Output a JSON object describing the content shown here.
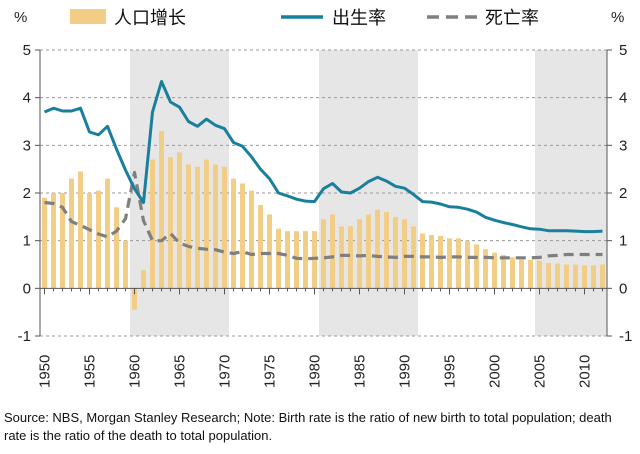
{
  "colors": {
    "population": "#f2cd86",
    "birth": "#1a7f9c",
    "death": "#7f7f7f",
    "shade": "#e6e6e6",
    "grid": "#9a9a9a"
  },
  "legend": {
    "population_label": "人口增长",
    "birth_label": "出生率",
    "death_label": "死亡率"
  },
  "note": "Source: NBS, Morgan Stanley Research; Note: Birth rate is the ratio of new birth to total population; death rate is the ratio of the death to total population.",
  "chart_data": {
    "type": "bar+line",
    "left_unit": "%",
    "right_unit": "%",
    "ylim": [
      -1,
      5
    ],
    "yticks": [
      -1,
      0,
      1,
      2,
      3,
      4,
      5
    ],
    "xlim": [
      1949.5,
      2012.5
    ],
    "xticks": [
      1950,
      1955,
      1960,
      1965,
      1970,
      1975,
      1980,
      1985,
      1990,
      1995,
      2000,
      2005,
      2010
    ],
    "shaded_ranges": [
      [
        1959.5,
        1961.5
      ],
      [
        1961.5,
        1970.5
      ],
      [
        1980.5,
        1991.5
      ],
      [
        2004.5,
        2012.5
      ]
    ],
    "series": [
      {
        "name": "人口增长",
        "kind": "bar",
        "years": [
          1950,
          1951,
          1952,
          1953,
          1954,
          1955,
          1956,
          1957,
          1958,
          1959,
          1960,
          1961,
          1962,
          1963,
          1964,
          1965,
          1966,
          1967,
          1968,
          1969,
          1970,
          1971,
          1972,
          1973,
          1974,
          1975,
          1976,
          1977,
          1978,
          1979,
          1980,
          1981,
          1982,
          1983,
          1984,
          1985,
          1986,
          1987,
          1988,
          1989,
          1990,
          1991,
          1992,
          1993,
          1994,
          1995,
          1996,
          1997,
          1998,
          1999,
          2000,
          2001,
          2002,
          2003,
          2004,
          2005,
          2006,
          2007,
          2008,
          2009,
          2010,
          2011,
          2012
        ],
        "values": [
          1.9,
          2.0,
          2.0,
          2.3,
          2.45,
          2.0,
          2.05,
          2.3,
          1.7,
          1.0,
          -0.45,
          0.38,
          2.7,
          3.3,
          2.75,
          2.85,
          2.6,
          2.55,
          2.7,
          2.6,
          2.55,
          2.3,
          2.2,
          2.05,
          1.75,
          1.55,
          1.25,
          1.2,
          1.2,
          1.2,
          1.2,
          1.45,
          1.55,
          1.3,
          1.3,
          1.45,
          1.55,
          1.65,
          1.6,
          1.5,
          1.45,
          1.3,
          1.15,
          1.12,
          1.1,
          1.05,
          1.05,
          1.0,
          0.92,
          0.82,
          0.75,
          0.7,
          0.65,
          0.6,
          0.6,
          0.58,
          0.53,
          0.52,
          0.5,
          0.5,
          0.48,
          0.48,
          0.5
        ]
      },
      {
        "name": "出生率",
        "kind": "line",
        "years": [
          1950,
          1951,
          1952,
          1953,
          1954,
          1955,
          1956,
          1957,
          1958,
          1959,
          1960,
          1961,
          1962,
          1963,
          1964,
          1965,
          1966,
          1967,
          1968,
          1969,
          1970,
          1971,
          1972,
          1973,
          1974,
          1975,
          1976,
          1977,
          1978,
          1979,
          1980,
          1981,
          1982,
          1983,
          1984,
          1985,
          1986,
          1987,
          1988,
          1989,
          1990,
          1991,
          1992,
          1993,
          1994,
          1995,
          1996,
          1997,
          1998,
          1999,
          2000,
          2001,
          2002,
          2003,
          2004,
          2005,
          2006,
          2007,
          2008,
          2009,
          2010,
          2011,
          2012
        ],
        "values": [
          3.7,
          3.78,
          3.72,
          3.72,
          3.78,
          3.28,
          3.22,
          3.4,
          2.92,
          2.48,
          2.09,
          1.8,
          3.7,
          4.34,
          3.91,
          3.8,
          3.5,
          3.4,
          3.55,
          3.42,
          3.35,
          3.06,
          2.98,
          2.76,
          2.5,
          2.3,
          2.0,
          1.94,
          1.87,
          1.83,
          1.82,
          2.09,
          2.2,
          2.02,
          2.0,
          2.1,
          2.24,
          2.33,
          2.25,
          2.14,
          2.1,
          1.97,
          1.82,
          1.81,
          1.77,
          1.71,
          1.7,
          1.66,
          1.6,
          1.49,
          1.43,
          1.38,
          1.34,
          1.29,
          1.25,
          1.24,
          1.21,
          1.21,
          1.21,
          1.2,
          1.19,
          1.19,
          1.2
        ]
      },
      {
        "name": "死亡率",
        "kind": "dashed-line",
        "years": [
          1950,
          1951,
          1952,
          1953,
          1954,
          1955,
          1956,
          1957,
          1958,
          1959,
          1960,
          1961,
          1962,
          1963,
          1964,
          1965,
          1966,
          1967,
          1968,
          1969,
          1970,
          1971,
          1972,
          1973,
          1974,
          1975,
          1976,
          1977,
          1978,
          1979,
          1980,
          1981,
          1982,
          1983,
          1984,
          1985,
          1986,
          1987,
          1988,
          1989,
          1990,
          1991,
          1992,
          1993,
          1994,
          1995,
          1996,
          1997,
          1998,
          1999,
          2000,
          2001,
          2002,
          2003,
          2004,
          2005,
          2006,
          2007,
          2008,
          2009,
          2010,
          2011,
          2012
        ],
        "values": [
          1.8,
          1.78,
          1.7,
          1.4,
          1.32,
          1.23,
          1.14,
          1.08,
          1.2,
          1.46,
          2.43,
          1.42,
          1.0,
          1.0,
          1.15,
          0.95,
          0.88,
          0.84,
          0.82,
          0.81,
          0.76,
          0.73,
          0.77,
          0.71,
          0.73,
          0.73,
          0.73,
          0.69,
          0.63,
          0.62,
          0.63,
          0.64,
          0.66,
          0.69,
          0.69,
          0.68,
          0.69,
          0.67,
          0.66,
          0.65,
          0.67,
          0.67,
          0.66,
          0.66,
          0.65,
          0.66,
          0.66,
          0.65,
          0.65,
          0.65,
          0.64,
          0.64,
          0.64,
          0.64,
          0.64,
          0.65,
          0.68,
          0.69,
          0.71,
          0.71,
          0.71,
          0.71,
          0.71
        ]
      }
    ]
  }
}
